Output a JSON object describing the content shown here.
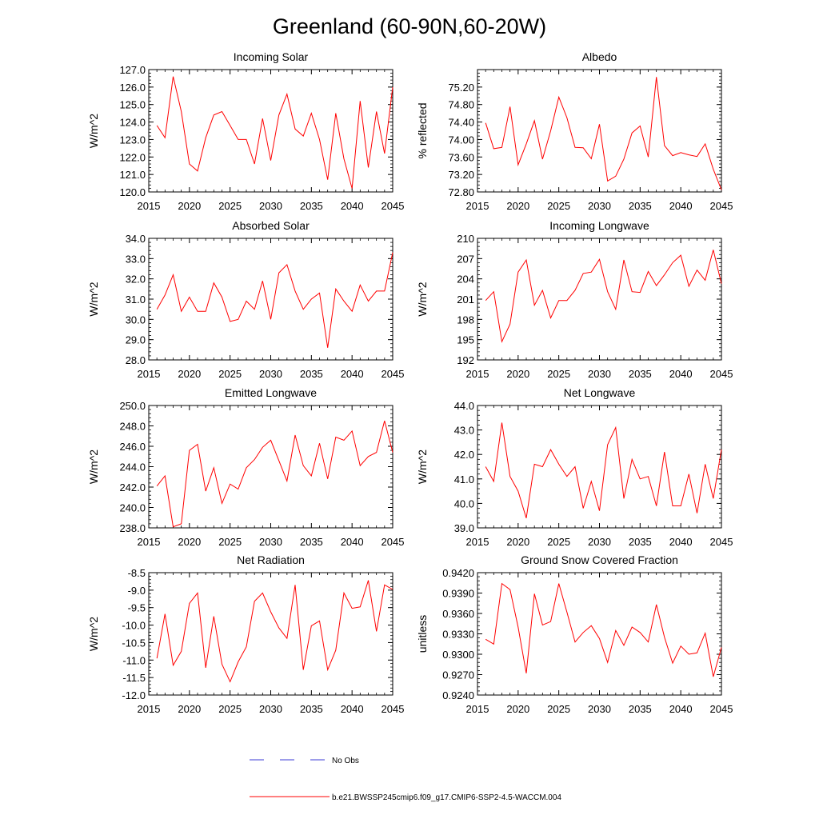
{
  "title": "Greenland (60-90N,60-20W)",
  "colors": {
    "model": "#ff0000",
    "obs": "#3b3bd6",
    "axis": "#000000"
  },
  "legend": {
    "obs_label": "No Obs",
    "model_label": "b.e21.BWSSP245cmip6.f09_g17.CMIP6-SSP2-4.5-WACCM.004"
  },
  "chart_data": [
    {
      "type": "line",
      "title": "Incoming Solar",
      "ylabel": "W/m^2",
      "xlabel": "",
      "xlim": [
        2015,
        2045
      ],
      "ylim": [
        120,
        127
      ],
      "yticks": [
        "120.0",
        "121.0",
        "122.0",
        "123.0",
        "124.0",
        "125.0",
        "126.0",
        "127.0"
      ],
      "xticks": [
        "2015",
        "2020",
        "2025",
        "2030",
        "2035",
        "2040",
        "2045"
      ],
      "x": [
        2016,
        2017,
        2018,
        2019,
        2020,
        2021,
        2022,
        2023,
        2024,
        2025,
        2026,
        2027,
        2028,
        2029,
        2030,
        2031,
        2032,
        2033,
        2034,
        2035,
        2036,
        2037,
        2038,
        2039,
        2040,
        2041,
        2042,
        2043,
        2044,
        2045
      ],
      "series": [
        {
          "name": "b.e21.BWSSP245cmip6.f09_g17.CMIP6-SSP2-4.5-WACCM.004",
          "values": [
            123.8,
            123.1,
            126.6,
            124.6,
            121.6,
            121.2,
            123.1,
            124.4,
            124.6,
            123.8,
            123.0,
            123.0,
            121.6,
            124.2,
            121.8,
            124.4,
            125.6,
            123.6,
            123.2,
            124.5,
            123.0,
            120.7,
            124.5,
            121.9,
            120.2,
            125.2,
            121.4,
            124.6,
            122.2,
            126.0
          ]
        }
      ]
    },
    {
      "type": "line",
      "title": "Albedo",
      "ylabel": "% reflected",
      "xlabel": "",
      "xlim": [
        2015,
        2045
      ],
      "ylim": [
        72.8,
        75.6
      ],
      "yticks": [
        "72.80",
        "73.20",
        "73.60",
        "74.00",
        "74.40",
        "74.80",
        "75.20"
      ],
      "xticks": [
        "2015",
        "2020",
        "2025",
        "2030",
        "2035",
        "2040",
        "2045"
      ],
      "x": [
        2016,
        2017,
        2018,
        2019,
        2020,
        2021,
        2022,
        2023,
        2024,
        2025,
        2026,
        2027,
        2028,
        2029,
        2030,
        2031,
        2032,
        2033,
        2034,
        2035,
        2036,
        2037,
        2038,
        2039,
        2040,
        2041,
        2042,
        2043,
        2044,
        2045
      ],
      "series": [
        {
          "name": "b.e21.BWSSP245cmip6.f09_g17.CMIP6-SSP2-4.5-WACCM.004",
          "values": [
            74.38,
            73.79,
            73.82,
            74.75,
            73.42,
            73.9,
            74.43,
            73.55,
            74.2,
            74.97,
            74.5,
            73.82,
            73.81,
            73.56,
            74.35,
            73.05,
            73.16,
            73.55,
            74.15,
            74.31,
            73.6,
            75.43,
            73.86,
            73.63,
            73.7,
            73.65,
            73.61,
            73.9,
            73.32,
            72.85
          ]
        }
      ]
    },
    {
      "type": "line",
      "title": "Absorbed Solar",
      "ylabel": "W/m^2",
      "xlabel": "",
      "xlim": [
        2015,
        2045
      ],
      "ylim": [
        28,
        34
      ],
      "yticks": [
        "28.0",
        "29.0",
        "30.0",
        "31.0",
        "32.0",
        "33.0",
        "34.0"
      ],
      "xticks": [
        "2015",
        "2020",
        "2025",
        "2030",
        "2035",
        "2040",
        "2045"
      ],
      "x": [
        2016,
        2017,
        2018,
        2019,
        2020,
        2021,
        2022,
        2023,
        2024,
        2025,
        2026,
        2027,
        2028,
        2029,
        2030,
        2031,
        2032,
        2033,
        2034,
        2035,
        2036,
        2037,
        2038,
        2039,
        2040,
        2041,
        2042,
        2043,
        2044,
        2045
      ],
      "series": [
        {
          "name": "b.e21.BWSSP245cmip6.f09_g17.CMIP6-SSP2-4.5-WACCM.004",
          "values": [
            30.5,
            31.2,
            32.2,
            30.4,
            31.1,
            30.4,
            30.4,
            31.8,
            31.1,
            29.9,
            30.0,
            30.9,
            30.5,
            31.9,
            30.0,
            32.3,
            32.7,
            31.4,
            30.5,
            31.0,
            31.3,
            28.6,
            31.5,
            30.9,
            30.4,
            31.7,
            30.9,
            31.4,
            31.4,
            33.3
          ]
        }
      ]
    },
    {
      "type": "line",
      "title": "Incoming Longwave",
      "ylabel": "W/m^2",
      "xlabel": "",
      "xlim": [
        2015,
        2045
      ],
      "ylim": [
        192,
        210
      ],
      "yticks": [
        "192",
        "195",
        "198",
        "201",
        "204",
        "207",
        "210"
      ],
      "xticks": [
        "2015",
        "2020",
        "2025",
        "2030",
        "2035",
        "2040",
        "2045"
      ],
      "x": [
        2016,
        2017,
        2018,
        2019,
        2020,
        2021,
        2022,
        2023,
        2024,
        2025,
        2026,
        2027,
        2028,
        2029,
        2030,
        2031,
        2032,
        2033,
        2034,
        2035,
        2036,
        2037,
        2038,
        2039,
        2040,
        2041,
        2042,
        2043,
        2044,
        2045
      ],
      "series": [
        {
          "name": "b.e21.BWSSP245cmip6.f09_g17.CMIP6-SSP2-4.5-WACCM.004",
          "values": [
            200.8,
            202.1,
            194.7,
            197.3,
            205.0,
            206.8,
            200.1,
            202.3,
            198.2,
            200.8,
            200.8,
            202.3,
            204.8,
            205.0,
            206.9,
            202.1,
            199.5,
            206.8,
            202.1,
            202.0,
            205.1,
            203.0,
            204.6,
            206.4,
            207.5,
            202.9,
            205.3,
            203.8,
            208.3,
            203.3
          ]
        }
      ]
    },
    {
      "type": "line",
      "title": "Emitted Longwave",
      "ylabel": "W/m^2",
      "xlabel": "",
      "xlim": [
        2015,
        2045
      ],
      "ylim": [
        238,
        250
      ],
      "yticks": [
        "238.0",
        "240.0",
        "242.0",
        "244.0",
        "246.0",
        "248.0",
        "250.0"
      ],
      "xticks": [
        "2015",
        "2020",
        "2025",
        "2030",
        "2035",
        "2040",
        "2045"
      ],
      "x": [
        2016,
        2017,
        2018,
        2019,
        2020,
        2021,
        2022,
        2023,
        2024,
        2025,
        2026,
        2027,
        2028,
        2029,
        2030,
        2031,
        2032,
        2033,
        2034,
        2035,
        2036,
        2037,
        2038,
        2039,
        2040,
        2041,
        2042,
        2043,
        2044,
        2045
      ],
      "series": [
        {
          "name": "b.e21.BWSSP245cmip6.f09_g17.CMIP6-SSP2-4.5-WACCM.004",
          "values": [
            242.1,
            243.1,
            238.1,
            238.4,
            245.6,
            246.2,
            241.6,
            243.9,
            240.4,
            242.3,
            241.8,
            243.9,
            244.7,
            245.9,
            246.6,
            244.6,
            242.6,
            247.1,
            244.1,
            243.1,
            246.3,
            242.8,
            246.9,
            246.6,
            247.5,
            244.1,
            245.0,
            245.4,
            248.5,
            245.4
          ]
        }
      ]
    },
    {
      "type": "line",
      "title": "Net Longwave",
      "ylabel": "W/m^2",
      "xlabel": "",
      "xlim": [
        2015,
        2045
      ],
      "ylim": [
        39,
        44
      ],
      "yticks": [
        "39.0",
        "40.0",
        "41.0",
        "42.0",
        "43.0",
        "44.0"
      ],
      "xticks": [
        "2015",
        "2020",
        "2025",
        "2030",
        "2035",
        "2040",
        "2045"
      ],
      "x": [
        2016,
        2017,
        2018,
        2019,
        2020,
        2021,
        2022,
        2023,
        2024,
        2025,
        2026,
        2027,
        2028,
        2029,
        2030,
        2031,
        2032,
        2033,
        2034,
        2035,
        2036,
        2037,
        2038,
        2039,
        2040,
        2041,
        2042,
        2043,
        2044,
        2045
      ],
      "series": [
        {
          "name": "b.e21.BWSSP245cmip6.f09_g17.CMIP6-SSP2-4.5-WACCM.004",
          "values": [
            41.5,
            40.9,
            43.3,
            41.1,
            40.5,
            39.4,
            41.6,
            41.5,
            42.2,
            41.6,
            41.1,
            41.5,
            39.8,
            40.9,
            39.7,
            42.4,
            43.1,
            40.2,
            41.8,
            41.0,
            41.1,
            39.9,
            42.1,
            39.9,
            39.9,
            41.2,
            39.6,
            41.6,
            40.2,
            42.2
          ]
        }
      ]
    },
    {
      "type": "line",
      "title": "Net Radiation",
      "ylabel": "W/m^2",
      "xlabel": "",
      "xlim": [
        2015,
        2045
      ],
      "ylim": [
        -12,
        -8.5
      ],
      "yticks": [
        "-12.0",
        "-11.5",
        "-11.0",
        "-10.5",
        "-10.0",
        "-9.5",
        "-9.0",
        "-8.5"
      ],
      "xticks": [
        "2015",
        "2020",
        "2025",
        "2030",
        "2035",
        "2040",
        "2045"
      ],
      "x": [
        2016,
        2017,
        2018,
        2019,
        2020,
        2021,
        2022,
        2023,
        2024,
        2025,
        2026,
        2027,
        2028,
        2029,
        2030,
        2031,
        2032,
        2033,
        2034,
        2035,
        2036,
        2037,
        2038,
        2039,
        2040,
        2041,
        2042,
        2043,
        2044,
        2045
      ],
      "series": [
        {
          "name": "b.e21.BWSSP245cmip6.f09_g17.CMIP6-SSP2-4.5-WACCM.004",
          "values": [
            -10.95,
            -9.68,
            -11.15,
            -10.75,
            -9.38,
            -9.08,
            -11.22,
            -9.75,
            -11.12,
            -11.62,
            -11.05,
            -10.62,
            -9.32,
            -9.08,
            -9.62,
            -10.08,
            -10.38,
            -8.85,
            -11.28,
            -10.02,
            -9.88,
            -11.28,
            -10.72,
            -9.08,
            -9.52,
            -9.48,
            -8.72,
            -10.18,
            -8.85,
            -8.98
          ]
        }
      ]
    },
    {
      "type": "line",
      "title": "Ground Snow Covered Fraction",
      "ylabel": "unitless",
      "xlabel": "",
      "xlim": [
        2015,
        2045
      ],
      "ylim": [
        0.924,
        0.942
      ],
      "yticks": [
        "0.9240",
        "0.9270",
        "0.9300",
        "0.9330",
        "0.9360",
        "0.9390",
        "0.9420"
      ],
      "xticks": [
        "2015",
        "2020",
        "2025",
        "2030",
        "2035",
        "2040",
        "2045"
      ],
      "x": [
        2016,
        2017,
        2018,
        2019,
        2020,
        2021,
        2022,
        2023,
        2024,
        2025,
        2026,
        2027,
        2028,
        2029,
        2030,
        2031,
        2032,
        2033,
        2034,
        2035,
        2036,
        2037,
        2038,
        2039,
        2040,
        2041,
        2042,
        2043,
        2044,
        2045
      ],
      "series": [
        {
          "name": "b.e21.BWSSP245cmip6.f09_g17.CMIP6-SSP2-4.5-WACCM.004",
          "values": [
            0.9322,
            0.9315,
            0.9404,
            0.9395,
            0.934,
            0.9272,
            0.9389,
            0.9343,
            0.9348,
            0.9404,
            0.9362,
            0.9318,
            0.9332,
            0.9342,
            0.9323,
            0.9288,
            0.9335,
            0.9313,
            0.934,
            0.9332,
            0.9318,
            0.9373,
            0.9325,
            0.9287,
            0.9312,
            0.93,
            0.9302,
            0.9331,
            0.9267,
            0.931
          ]
        }
      ]
    }
  ]
}
